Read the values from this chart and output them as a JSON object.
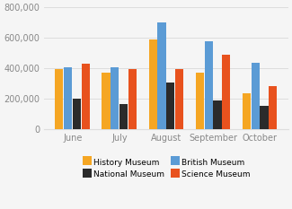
{
  "months": [
    "June",
    "July",
    "August",
    "September",
    "October"
  ],
  "bar_order": [
    "History Museum",
    "British Museum",
    "National Museum",
    "Science Museum"
  ],
  "colors": {
    "History Museum": "#F5A623",
    "British Museum": "#5B9BD5",
    "National Museum": "#2B2B2B",
    "Science Museum": "#E8521E"
  },
  "values": {
    "History Museum": [
      395000,
      375000,
      590000,
      370000,
      240000
    ],
    "British Museum": [
      410000,
      410000,
      700000,
      580000,
      435000
    ],
    "National Museum": [
      205000,
      165000,
      305000,
      190000,
      155000
    ],
    "Science Museum": [
      430000,
      395000,
      395000,
      490000,
      285000
    ]
  },
  "legend_order": [
    "History Museum",
    "National Museum",
    "British Museum",
    "Science Museum"
  ],
  "ylim": [
    0,
    800000
  ],
  "yticks": [
    0,
    200000,
    400000,
    600000,
    800000
  ],
  "ytick_labels": [
    "0",
    "200,000",
    "400,000",
    "600,000",
    "800,000"
  ],
  "bar_width": 0.19,
  "background_color": "#f5f5f5",
  "grid_color": "#dddddd",
  "tick_color": "#888888",
  "axis_fontsize": 7,
  "legend_fontsize": 6.5
}
